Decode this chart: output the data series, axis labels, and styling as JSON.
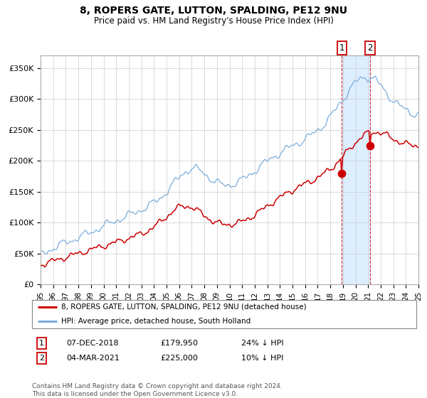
{
  "title": "8, ROPERS GATE, LUTTON, SPALDING, PE12 9NU",
  "subtitle": "Price paid vs. HM Land Registry's House Price Index (HPI)",
  "ylabel_ticks": [
    "£0",
    "£50K",
    "£100K",
    "£150K",
    "£200K",
    "£250K",
    "£300K",
    "£350K"
  ],
  "ylim": [
    0,
    370000
  ],
  "yticks": [
    0,
    50000,
    100000,
    150000,
    200000,
    250000,
    300000,
    350000
  ],
  "legend_red": "8, ROPERS GATE, LUTTON, SPALDING, PE12 9NU (detached house)",
  "legend_blue": "HPI: Average price, detached house, South Holland",
  "transaction1_date": "07-DEC-2018",
  "transaction1_price": 179950,
  "transaction1_hpi": "24% ↓ HPI",
  "transaction2_date": "04-MAR-2021",
  "transaction2_price": 225000,
  "transaction2_hpi": "10% ↓ HPI",
  "footer": "Contains HM Land Registry data © Crown copyright and database right 2024.\nThis data is licensed under the Open Government Licence v3.0.",
  "red_color": "#cc0000",
  "blue_color": "#7aaddc",
  "highlight_color": "#ddeeff",
  "grid_color": "#cccccc",
  "bg_color": "#ffffff",
  "t1_year": 2018.917,
  "t2_year": 2021.167,
  "xlim_start": 1995,
  "xlim_end": 2025
}
